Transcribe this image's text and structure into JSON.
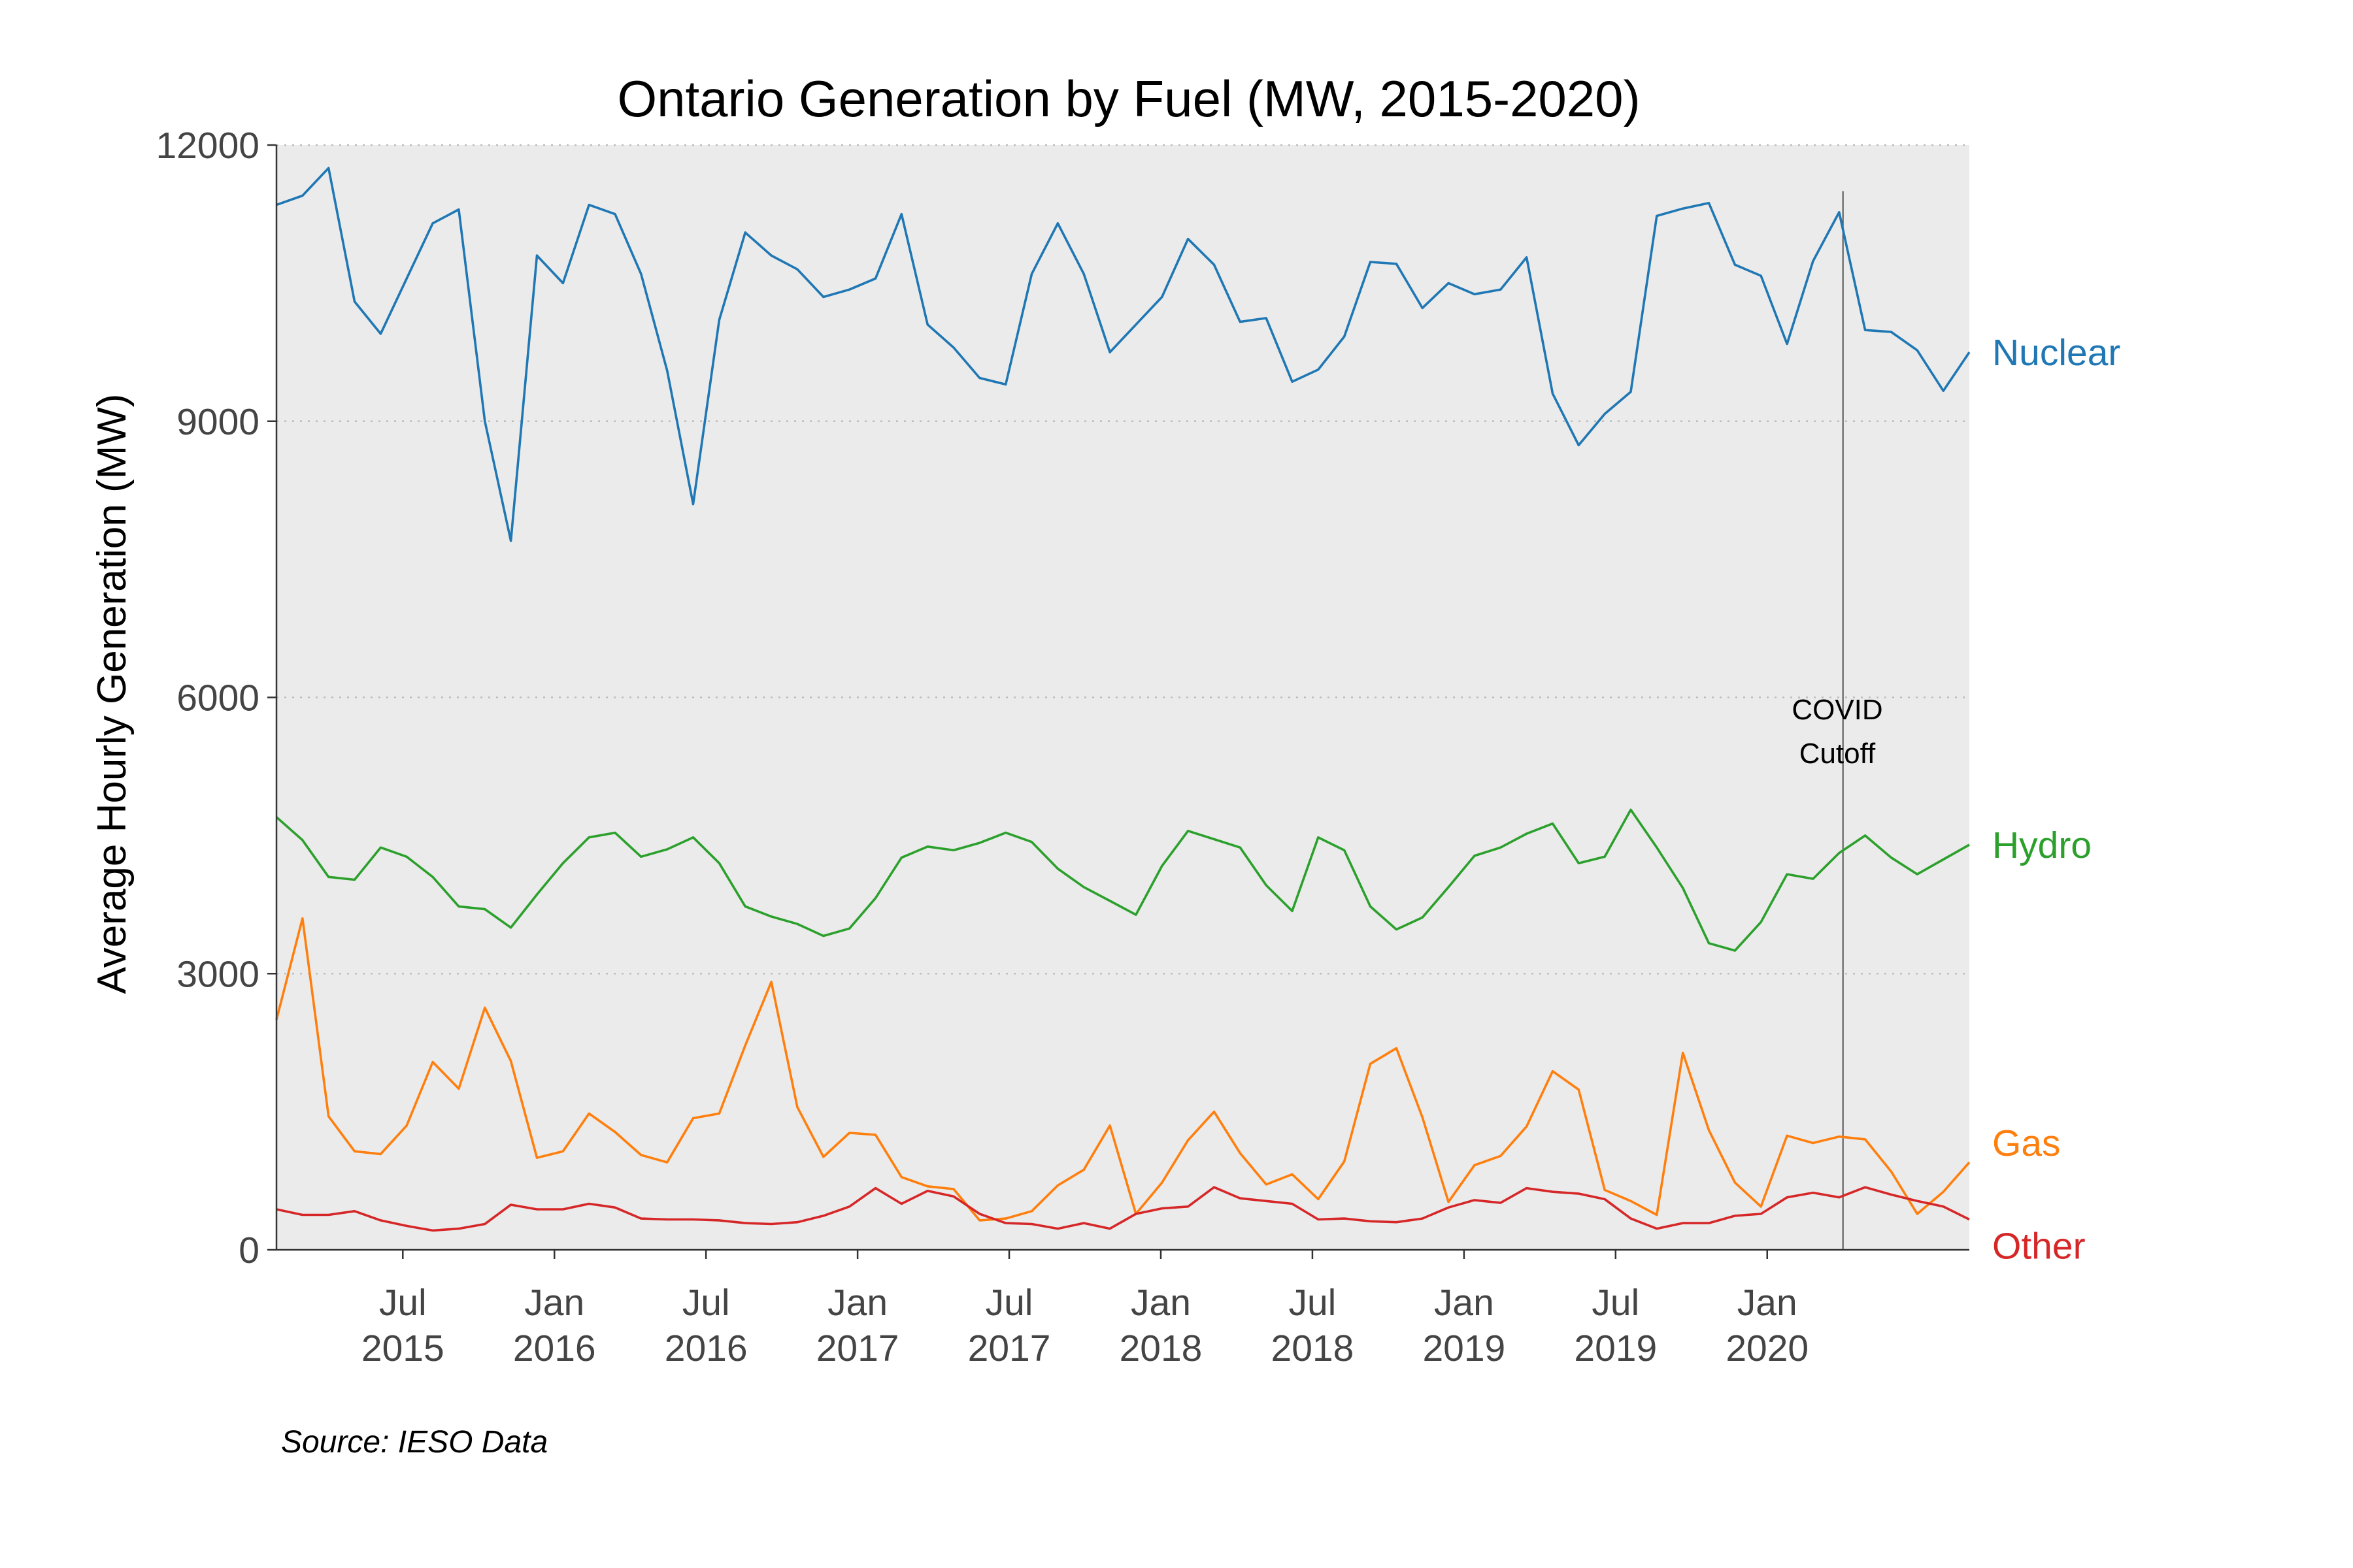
{
  "chart_data": {
    "type": "line",
    "title": "Ontario Generation by Fuel (MW, 2015-2020)",
    "xlabel": "",
    "ylabel": "Average Hourly Generation (MW)",
    "caption": "Source: IESO Data",
    "x_start": "2015-02",
    "x_end": "2020-09",
    "ylim": [
      0,
      12000
    ],
    "yticks": [
      0,
      3000,
      6000,
      9000,
      12000
    ],
    "xticks": [
      {
        "date": "2015-07",
        "line1": "Jul",
        "line2": "2015"
      },
      {
        "date": "2016-01",
        "line1": "Jan",
        "line2": "2016"
      },
      {
        "date": "2016-07",
        "line1": "Jul",
        "line2": "2016"
      },
      {
        "date": "2017-01",
        "line1": "Jan",
        "line2": "2017"
      },
      {
        "date": "2017-07",
        "line1": "Jul",
        "line2": "2017"
      },
      {
        "date": "2018-01",
        "line1": "Jan",
        "line2": "2018"
      },
      {
        "date": "2018-07",
        "line1": "Jul",
        "line2": "2018"
      },
      {
        "date": "2019-01",
        "line1": "Jan",
        "line2": "2019"
      },
      {
        "date": "2019-07",
        "line1": "Jul",
        "line2": "2019"
      },
      {
        "date": "2020-01",
        "line1": "Jan",
        "line2": "2020"
      }
    ],
    "grid": true,
    "background": "#EBEBEB",
    "annotation": {
      "date": "2020-04",
      "line1": "COVID",
      "line2": "Cutoff"
    },
    "series": [
      {
        "name": "Nuclear",
        "color": "#1F77B4",
        "values": [
          11350,
          11450,
          11750,
          10300,
          9950,
          10550,
          11150,
          11300,
          9000,
          7700,
          10800,
          10500,
          11350,
          11250,
          10600,
          9550,
          8100,
          10100,
          11050,
          10800,
          10650,
          10350,
          10430,
          10550,
          11250,
          10050,
          9800,
          9470,
          9400,
          10600,
          11150,
          10600,
          9750,
          10050,
          10350,
          10980,
          10700,
          10080,
          10120,
          9430,
          9560,
          9920,
          10730,
          10710,
          10230,
          10500,
          10380,
          10430,
          10780,
          9300,
          8740,
          9080,
          9320,
          11230,
          11310,
          11370,
          10700,
          10580,
          9840,
          10740,
          11270,
          9990,
          9970,
          9770,
          9330,
          9750
        ]
      },
      {
        "name": "Hydro",
        "color": "#2CA02C",
        "values": [
          4700,
          4450,
          4050,
          4020,
          4370,
          4270,
          4050,
          3730,
          3700,
          3500,
          3860,
          4200,
          4480,
          4530,
          4270,
          4350,
          4480,
          4200,
          3730,
          3620,
          3540,
          3410,
          3490,
          3820,
          4260,
          4380,
          4340,
          4420,
          4530,
          4430,
          4140,
          3940,
          3790,
          3640,
          4170,
          4550,
          4460,
          4370,
          3960,
          3680,
          4480,
          4340,
          3730,
          3480,
          3610,
          3940,
          4280,
          4370,
          4520,
          4630,
          4200,
          4270,
          4780,
          4370,
          3930,
          3330,
          3250,
          3560,
          4080,
          4030,
          4310,
          4500,
          4260,
          4080,
          4240,
          4400
        ]
      },
      {
        "name": "Gas",
        "color": "#FF7F0E",
        "values": [
          2500,
          3600,
          1450,
          1070,
          1040,
          1350,
          2040,
          1750,
          2630,
          2050,
          1000,
          1070,
          1480,
          1280,
          1030,
          950,
          1430,
          1480,
          2220,
          2910,
          1550,
          1010,
          1270,
          1250,
          790,
          690,
          660,
          320,
          340,
          420,
          700,
          870,
          1350,
          390,
          730,
          1190,
          1500,
          1050,
          710,
          820,
          550,
          960,
          2020,
          2190,
          1440,
          520,
          920,
          1020,
          1340,
          1940,
          1740,
          650,
          530,
          380,
          2140,
          1300,
          730,
          470,
          1240,
          1160,
          1230,
          1200,
          850,
          390,
          630,
          950
        ]
      },
      {
        "name": "Other",
        "color": "#D62728",
        "values": [
          440,
          380,
          380,
          420,
          320,
          260,
          210,
          230,
          280,
          490,
          440,
          440,
          500,
          460,
          340,
          330,
          330,
          320,
          290,
          280,
          300,
          370,
          470,
          670,
          500,
          640,
          580,
          390,
          290,
          280,
          230,
          290,
          230,
          390,
          450,
          470,
          680,
          560,
          530,
          500,
          330,
          340,
          310,
          300,
          340,
          460,
          540,
          510,
          670,
          630,
          610,
          550,
          340,
          230,
          290,
          290,
          370,
          390,
          570,
          620,
          570,
          680,
          600,
          530,
          470,
          330
        ]
      }
    ]
  }
}
